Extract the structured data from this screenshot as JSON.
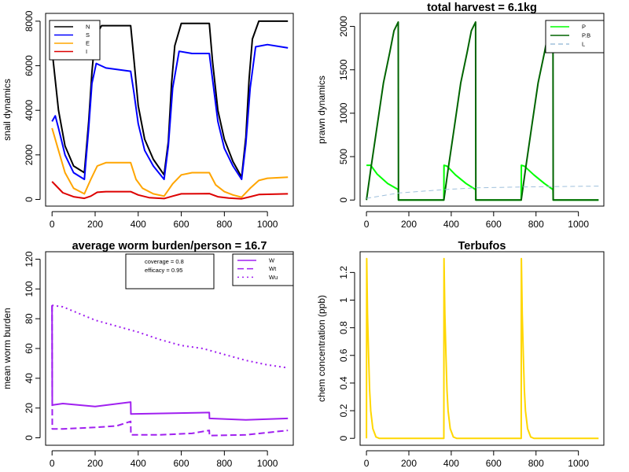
{
  "chart_data": [
    {
      "type": "line",
      "title": "",
      "xlabel": "",
      "ylabel": "snail dynamics",
      "xlim": [
        -30,
        1120
      ],
      "ylim": [
        -300,
        8350
      ],
      "xticks": [
        0,
        200,
        400,
        600,
        800,
        1000
      ],
      "yticks": [
        0,
        2000,
        4000,
        6000,
        8000
      ],
      "legend_position": "top-left",
      "series": [
        {
          "name": "N",
          "color": "#000000",
          "dash": "",
          "points": [
            [
              0,
              6700
            ],
            [
              30,
              4000
            ],
            [
              60,
              2400
            ],
            [
              100,
              1500
            ],
            [
              150,
              1200
            ],
            [
              170,
              3500
            ],
            [
              185,
              5700
            ],
            [
              200,
              7300
            ],
            [
              230,
              7800
            ],
            [
              365,
              7800
            ],
            [
              380,
              6300
            ],
            [
              400,
              4200
            ],
            [
              430,
              2700
            ],
            [
              470,
              1800
            ],
            [
              520,
              1100
            ],
            [
              540,
              2600
            ],
            [
              555,
              5200
            ],
            [
              570,
              6900
            ],
            [
              600,
              7900
            ],
            [
              730,
              7900
            ],
            [
              745,
              6200
            ],
            [
              770,
              4000
            ],
            [
              800,
              2700
            ],
            [
              840,
              1700
            ],
            [
              880,
              1000
            ],
            [
              900,
              2800
            ],
            [
              915,
              5400
            ],
            [
              930,
              7200
            ],
            [
              960,
              8000
            ],
            [
              1095,
              8000
            ]
          ]
        },
        {
          "name": "S",
          "color": "#0000ff",
          "dash": "",
          "points": [
            [
              0,
              3500
            ],
            [
              15,
              3750
            ],
            [
              30,
              3200
            ],
            [
              60,
              2000
            ],
            [
              100,
              1200
            ],
            [
              150,
              900
            ],
            [
              170,
              3200
            ],
            [
              185,
              5200
            ],
            [
              205,
              6100
            ],
            [
              250,
              5900
            ],
            [
              365,
              5750
            ],
            [
              380,
              4800
            ],
            [
              400,
              3400
            ],
            [
              430,
              2200
            ],
            [
              470,
              1500
            ],
            [
              520,
              900
            ],
            [
              540,
              2400
            ],
            [
              560,
              5000
            ],
            [
              590,
              6650
            ],
            [
              650,
              6550
            ],
            [
              730,
              6550
            ],
            [
              745,
              5400
            ],
            [
              770,
              3500
            ],
            [
              800,
              2300
            ],
            [
              840,
              1500
            ],
            [
              880,
              900
            ],
            [
              900,
              2500
            ],
            [
              920,
              5000
            ],
            [
              945,
              6850
            ],
            [
              1000,
              6950
            ],
            [
              1095,
              6800
            ]
          ]
        },
        {
          "name": "E",
          "color": "#ffa500",
          "dash": "",
          "points": [
            [
              0,
              3200
            ],
            [
              30,
              2200
            ],
            [
              60,
              1200
            ],
            [
              100,
              500
            ],
            [
              150,
              250
            ],
            [
              180,
              900
            ],
            [
              210,
              1500
            ],
            [
              250,
              1650
            ],
            [
              365,
              1650
            ],
            [
              390,
              900
            ],
            [
              420,
              500
            ],
            [
              470,
              250
            ],
            [
              520,
              150
            ],
            [
              560,
              700
            ],
            [
              600,
              1100
            ],
            [
              650,
              1200
            ],
            [
              730,
              1200
            ],
            [
              760,
              650
            ],
            [
              800,
              350
            ],
            [
              840,
              200
            ],
            [
              880,
              100
            ],
            [
              920,
              500
            ],
            [
              960,
              850
            ],
            [
              1000,
              950
            ],
            [
              1095,
              1000
            ]
          ]
        },
        {
          "name": "I",
          "color": "#dd0000",
          "dash": "",
          "points": [
            [
              0,
              800
            ],
            [
              20,
              600
            ],
            [
              50,
              300
            ],
            [
              100,
              120
            ],
            [
              150,
              50
            ],
            [
              180,
              150
            ],
            [
              210,
              320
            ],
            [
              250,
              350
            ],
            [
              365,
              350
            ],
            [
              400,
              200
            ],
            [
              450,
              80
            ],
            [
              520,
              40
            ],
            [
              560,
              150
            ],
            [
              600,
              250
            ],
            [
              730,
              260
            ],
            [
              770,
              120
            ],
            [
              820,
              60
            ],
            [
              880,
              30
            ],
            [
              920,
              120
            ],
            [
              960,
              220
            ],
            [
              1095,
              250
            ]
          ]
        }
      ]
    },
    {
      "type": "line",
      "title": "total harvest = 6.1kg",
      "xlabel": "",
      "ylabel": "prawn dynamics",
      "xlim": [
        -30,
        1120
      ],
      "ylim": [
        -70,
        2150
      ],
      "xticks": [
        0,
        200,
        400,
        600,
        800,
        1000
      ],
      "yticks": [
        0,
        500,
        1000,
        1500,
        2000
      ],
      "legend_position": "top-right",
      "series": [
        {
          "name": "P",
          "color": "#00ff00",
          "dash": "",
          "points": [
            [
              0,
              400
            ],
            [
              20,
              400
            ],
            [
              50,
              300
            ],
            [
              100,
              190
            ],
            [
              150,
              120
            ],
            [
              151,
              0
            ],
            [
              365,
              0
            ],
            [
              366,
              400
            ],
            [
              380,
              390
            ],
            [
              420,
              290
            ],
            [
              470,
              190
            ],
            [
              515,
              120
            ],
            [
              516,
              0
            ],
            [
              730,
              0
            ],
            [
              731,
              400
            ],
            [
              745,
              390
            ],
            [
              790,
              290
            ],
            [
              840,
              190
            ],
            [
              880,
              120
            ],
            [
              881,
              0
            ],
            [
              1095,
              0
            ]
          ]
        },
        {
          "name": "P.B",
          "color": "#006400",
          "dash": "",
          "points": [
            [
              0,
              0
            ],
            [
              20,
              350
            ],
            [
              50,
              850
            ],
            [
              80,
              1350
            ],
            [
              110,
              1700
            ],
            [
              130,
              1950
            ],
            [
              150,
              2050
            ],
            [
              151,
              0
            ],
            [
              365,
              0
            ],
            [
              385,
              350
            ],
            [
              415,
              850
            ],
            [
              445,
              1350
            ],
            [
              475,
              1700
            ],
            [
              495,
              1950
            ],
            [
              515,
              2050
            ],
            [
              516,
              0
            ],
            [
              730,
              0
            ],
            [
              750,
              350
            ],
            [
              780,
              850
            ],
            [
              810,
              1350
            ],
            [
              840,
              1700
            ],
            [
              860,
              1950
            ],
            [
              880,
              2050
            ],
            [
              881,
              0
            ],
            [
              1095,
              0
            ]
          ]
        },
        {
          "name": "L",
          "color": "#9fc0dc",
          "dash": "6,4",
          "points": [
            [
              0,
              20
            ],
            [
              150,
              80
            ],
            [
              365,
              120
            ],
            [
              515,
              140
            ],
            [
              730,
              150
            ],
            [
              880,
              155
            ],
            [
              1095,
              160
            ]
          ]
        }
      ]
    },
    {
      "type": "line",
      "title": "average worm burden/person = 16.7",
      "xlabel": "",
      "ylabel": "mean worm burden",
      "xlim": [
        -30,
        1120
      ],
      "ylim": [
        -5,
        125
      ],
      "xticks": [
        0,
        200,
        400,
        600,
        800,
        1000
      ],
      "yticks": [
        0,
        20,
        40,
        60,
        80,
        100,
        120
      ],
      "legend_position": "top-right",
      "annotation": [
        "coverage = 0.8",
        "efficacy = 0.95"
      ],
      "series": [
        {
          "name": "W",
          "color": "#a020f0",
          "dash": "",
          "points": [
            [
              0,
              89
            ],
            [
              1,
              22
            ],
            [
              50,
              23
            ],
            [
              200,
              21
            ],
            [
              365,
              24
            ],
            [
              366,
              16
            ],
            [
              730,
              17
            ],
            [
              731,
              13
            ],
            [
              900,
              12
            ],
            [
              1095,
              13
            ]
          ]
        },
        {
          "name": "Wt",
          "color": "#a020f0",
          "dash": "8,4",
          "points": [
            [
              0,
              89
            ],
            [
              1,
              6
            ],
            [
              50,
              6
            ],
            [
              200,
              7
            ],
            [
              300,
              8
            ],
            [
              365,
              11
            ],
            [
              366,
              2
            ],
            [
              500,
              2
            ],
            [
              650,
              3
            ],
            [
              730,
              5
            ],
            [
              731,
              1.5
            ],
            [
              900,
              2
            ],
            [
              1095,
              5
            ]
          ]
        },
        {
          "name": "Wu",
          "color": "#a020f0",
          "dash": "2,4",
          "points": [
            [
              0,
              89
            ],
            [
              50,
              88
            ],
            [
              100,
              85
            ],
            [
              200,
              79
            ],
            [
              300,
              75
            ],
            [
              400,
              71
            ],
            [
              500,
              66
            ],
            [
              600,
              62
            ],
            [
              700,
              60
            ],
            [
              800,
              56
            ],
            [
              900,
              52
            ],
            [
              1000,
              49
            ],
            [
              1095,
              47
            ]
          ]
        }
      ]
    },
    {
      "type": "line",
      "title": "Terbufos",
      "xlabel": "",
      "ylabel": "chem concentration (ppb)",
      "xlim": [
        -30,
        1120
      ],
      "ylim": [
        -0.05,
        1.35
      ],
      "xticks": [
        0,
        200,
        400,
        600,
        800,
        1000
      ],
      "yticks": [
        0.0,
        0.2,
        0.4,
        0.6,
        0.8,
        1.0,
        1.2
      ],
      "legend_position": "",
      "series": [
        {
          "name": "",
          "color": "#ffd700",
          "dash": "",
          "points": [
            [
              0,
              0
            ],
            [
              1,
              1.3
            ],
            [
              5,
              0.9
            ],
            [
              10,
              0.6
            ],
            [
              15,
              0.35
            ],
            [
              20,
              0.2
            ],
            [
              30,
              0.07
            ],
            [
              45,
              0.01
            ],
            [
              60,
              0
            ],
            [
              365,
              0
            ],
            [
              366,
              1.3
            ],
            [
              370,
              0.9
            ],
            [
              375,
              0.6
            ],
            [
              380,
              0.35
            ],
            [
              385,
              0.2
            ],
            [
              395,
              0.07
            ],
            [
              410,
              0.01
            ],
            [
              425,
              0
            ],
            [
              730,
              0
            ],
            [
              731,
              1.3
            ],
            [
              735,
              0.9
            ],
            [
              740,
              0.6
            ],
            [
              745,
              0.35
            ],
            [
              750,
              0.2
            ],
            [
              760,
              0.07
            ],
            [
              775,
              0.01
            ],
            [
              790,
              0
            ],
            [
              1095,
              0
            ]
          ]
        }
      ]
    }
  ]
}
